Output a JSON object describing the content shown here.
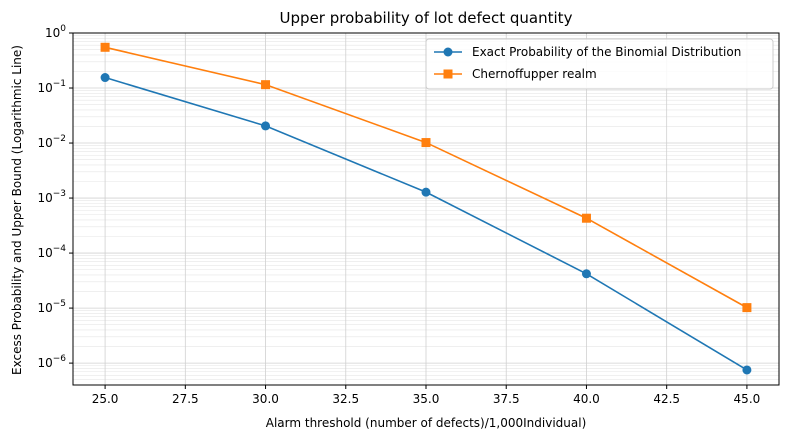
{
  "chart_data": {
    "type": "line",
    "title": "Upper probability of lot defect quantity",
    "xlabel": "Alarm threshold (number of defects)/1,000Individual)",
    "ylabel": "Excess Probability and Upper Bound (Logarithmic Line)",
    "x": [
      25.0,
      30.0,
      35.0,
      40.0,
      45.0
    ],
    "xlim": [
      24.0,
      46.0
    ],
    "xticks": [
      "25.0",
      "27.5",
      "30.0",
      "32.5",
      "35.0",
      "37.5",
      "40.0",
      "42.5",
      "45.0"
    ],
    "xtick_values": [
      25.0,
      27.5,
      30.0,
      32.5,
      35.0,
      37.5,
      40.0,
      42.5,
      45.0
    ],
    "yscale": "log",
    "ylim": [
      4e-07,
      1.0
    ],
    "yticks": [
      {
        "base": "10",
        "exp": "0",
        "value": 1
      },
      {
        "base": "10",
        "exp": "−1",
        "value": 0.1
      },
      {
        "base": "10",
        "exp": "−2",
        "value": 0.01
      },
      {
        "base": "10",
        "exp": "−3",
        "value": 0.001
      },
      {
        "base": "10",
        "exp": "−4",
        "value": 0.0001
      },
      {
        "base": "10",
        "exp": "−5",
        "value": 1e-05
      },
      {
        "base": "10",
        "exp": "−6",
        "value": 1e-06
      }
    ],
    "grid": true,
    "legend_position": "top-right",
    "series": [
      {
        "name": "Exact Probability of the Binomial Distribution",
        "color": "#1f77b4",
        "marker": "circle",
        "values": [
          0.155,
          0.0205,
          0.00128,
          4.2e-05,
          7.5e-07
        ]
      },
      {
        "name": "Chernoffupper realm",
        "color": "#ff7f0e",
        "marker": "square",
        "values": [
          0.55,
          0.115,
          0.0102,
          0.00043,
          1.02e-05
        ]
      }
    ]
  }
}
